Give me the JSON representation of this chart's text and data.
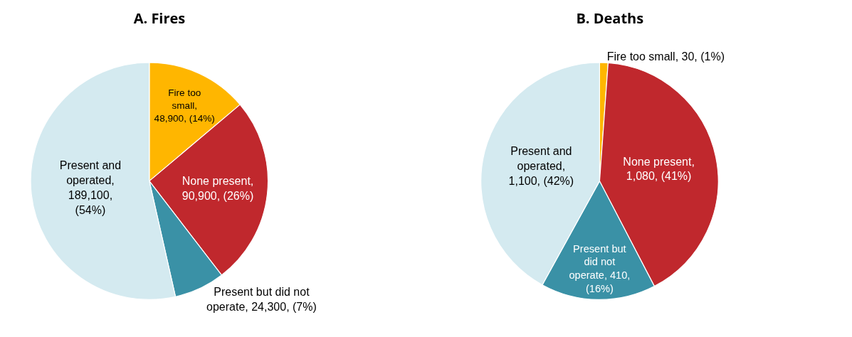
{
  "chart_data": [
    {
      "type": "pie",
      "title": "A. Fires",
      "categories": [
        "Fire too small",
        "None present",
        "Present but did not operate",
        "Present and operated"
      ],
      "values": [
        48900,
        90900,
        24300,
        189100
      ],
      "colors": [
        "#ffb600",
        "#c0282d",
        "#3a91a6",
        "#d4eaf0"
      ],
      "value_labels": [
        ", 48,900, (14%)",
        ", 90,900, (26%)",
        ", 24,300, (7%)",
        ", 189,100, (54%)"
      ],
      "legend": false
    },
    {
      "type": "pie",
      "title": "B. Deaths",
      "categories": [
        "Fire too small",
        "None present",
        "Present but did not operate",
        "Present and operated"
      ],
      "values": [
        30,
        1080,
        410,
        1100
      ],
      "colors": [
        "#ffb600",
        "#c0282d",
        "#3a91a6",
        "#d4eaf0"
      ],
      "value_labels": [
        ", 30, (1%)",
        ", 1,080, (41%)",
        ", 410, (16%)",
        ", 1,100, (42%)"
      ],
      "legend": false
    }
  ]
}
